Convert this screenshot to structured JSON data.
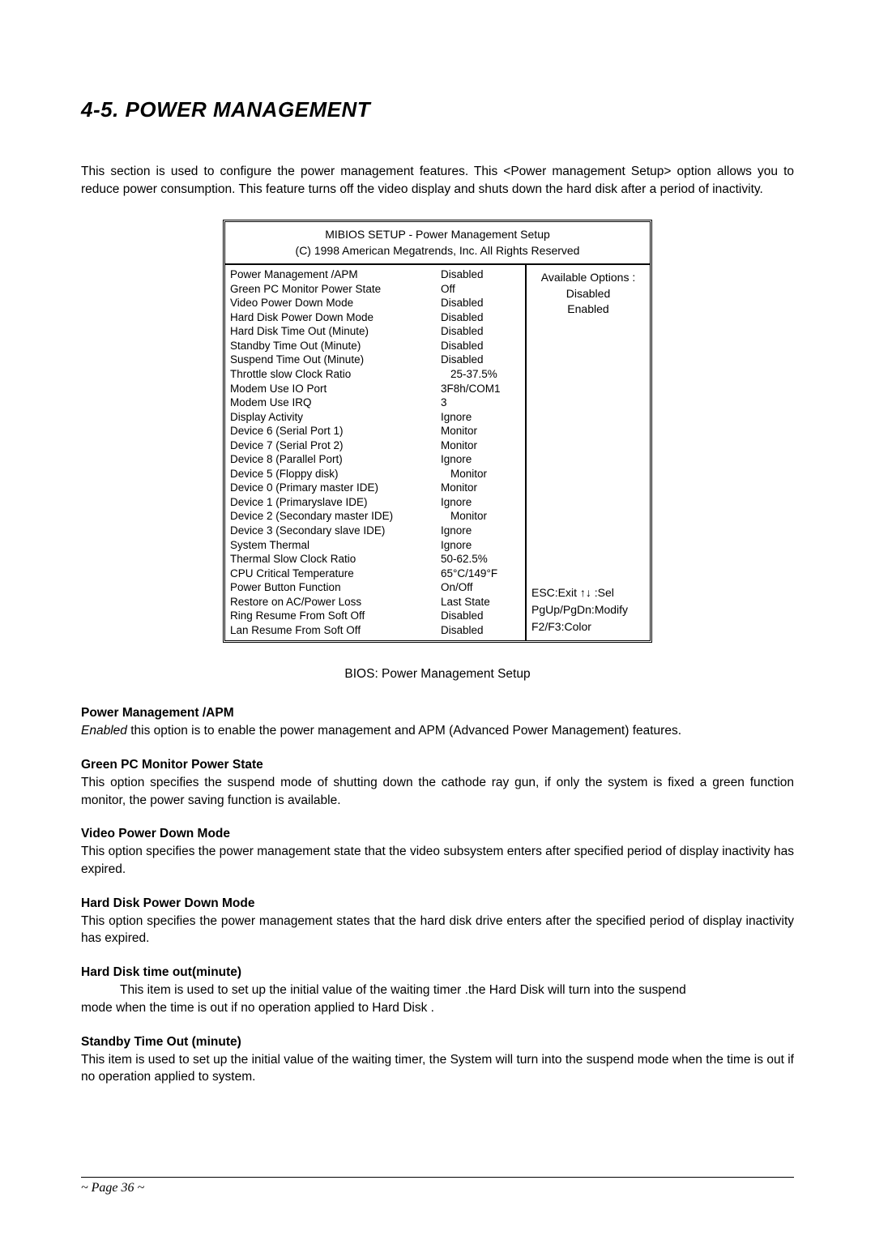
{
  "section_title": "4-5. POWER MANAGEMENT",
  "intro": "This section is used to configure the power management features. This <Power management Setup> option allows you to reduce power consumption. This feature turns off the video display and shuts down the hard disk after a period of inactivity.",
  "bios": {
    "header_line1": "MIBIOS SETUP - Power Management Setup",
    "header_line2": "(C) 1998 American Megatrends, Inc.  All Rights Reserved",
    "rows": [
      {
        "label": "Power Management /APM",
        "value": "Disabled"
      },
      {
        "label": "Green PC Monitor Power State",
        "value": "Off"
      },
      {
        "label": "Video Power Down Mode",
        "value": "Disabled"
      },
      {
        "label": "Hard Disk Power Down Mode",
        "value": "Disabled"
      },
      {
        "label": "Hard Disk Time Out (Minute)",
        "value": "Disabled"
      },
      {
        "label": "Standby Time Out (Minute)",
        "value": "Disabled"
      },
      {
        "label": "Suspend Time Out (Minute)",
        "value": "Disabled"
      },
      {
        "label": "Throttle slow Clock Ratio",
        "value": "25-37.5%",
        "indent": true
      },
      {
        "label": "Modem Use IO Port",
        "value": "3F8h/COM1"
      },
      {
        "label": "Modem Use IRQ",
        "value": "3"
      },
      {
        "label": "Display Activity",
        "value": "Ignore"
      },
      {
        "label": "Device 6 (Serial Port 1)",
        "value": "Monitor"
      },
      {
        "label": "Device 7 (Serial Prot 2)",
        "value": "Monitor"
      },
      {
        "label": "Device 8 (Parallel Port)",
        "value": "Ignore"
      },
      {
        "label": "Device 5 (Floppy disk)",
        "value": "Monitor",
        "indent": true
      },
      {
        "label": "Device 0 (Primary master IDE)",
        "value": "Monitor"
      },
      {
        "label": "Device 1 (Primaryslave IDE)",
        "value": "Ignore"
      },
      {
        "label": "Device 2 (Secondary master IDE)",
        "value": "Monitor",
        "indent": true
      },
      {
        "label": "Device 3 (Secondary slave IDE)",
        "value": "Ignore"
      },
      {
        "label": "System Thermal",
        "value": "Ignore"
      },
      {
        "label": "Thermal Slow Clock Ratio",
        "value": "50-62.5%"
      },
      {
        "label": "CPU Critical Temperature",
        "value": "65°C/149°F"
      },
      {
        "label": "Power Button Function",
        "value": "On/Off"
      },
      {
        "label": "Restore on AC/Power Loss",
        "value": "Last State"
      },
      {
        "label": "Ring Resume From Soft Off",
        "value": "Disabled"
      },
      {
        "label": "Lan Resume From Soft Off",
        "value": "Disabled"
      }
    ],
    "options_title": "Available Options :",
    "options": [
      "Disabled",
      "Enabled"
    ],
    "keys": [
      "ESC:Exit  ↑↓ :Sel",
      "PgUp/PgDn:Modify",
      "F2/F3:Color"
    ]
  },
  "caption": "BIOS: Power Management Setup",
  "blocks": [
    {
      "title": "Power Management /APM",
      "text_prefix_italic": "Enabled",
      "text": " this option is to enable the power management and APM (Advanced Power Management) features."
    },
    {
      "title": "Green PC Monitor Power State",
      "text": "This option specifies the suspend mode of shutting down the cathode ray gun, if only the system is fixed a green function monitor, the power saving function is available."
    },
    {
      "title": "Video Power Down Mode",
      "text": "This option specifies the power management state that the video subsystem enters after specified period of display inactivity has expired."
    },
    {
      "title": "Hard Disk Power Down Mode",
      "text": "This option specifies the power management states that the hard disk drive enters after the specified period of display inactivity has expired."
    },
    {
      "title": "Hard Disk time out(minute)",
      "text_indent_first": "This item is used to set up the initial value of the waiting timer .the Hard Disk will turn into the suspend",
      "text_rest": "mode when the time is out if no operation applied to Hard Disk ."
    },
    {
      "title": "Standby Time Out (minute)",
      "text": "This item is used to set up the initial value of the waiting timer, the System will turn into the suspend mode when the time is out if no operation applied to system."
    }
  ],
  "page_footer": "~ Page 36 ~"
}
